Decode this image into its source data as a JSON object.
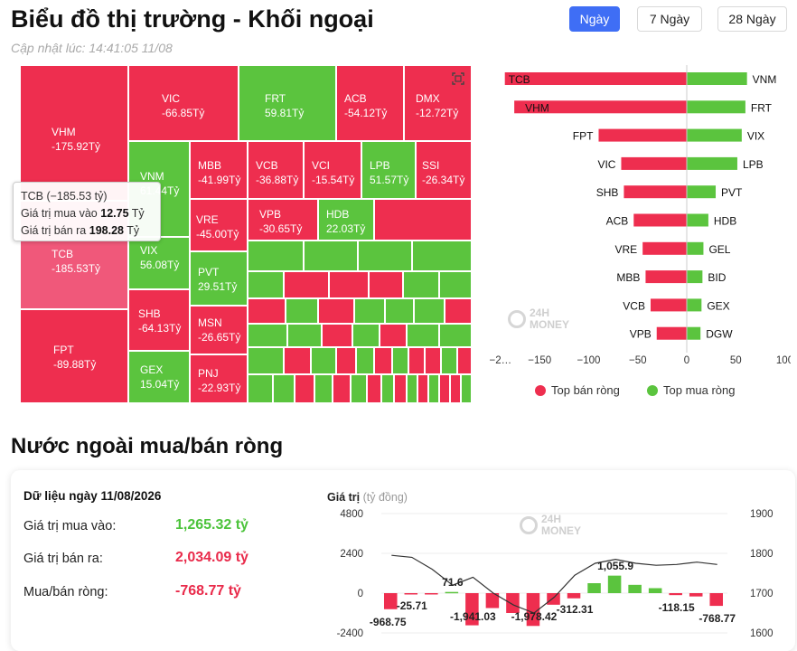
{
  "header": {
    "title": "Biểu đồ thị trường - Khối ngoại",
    "updated": "Cập nhật lúc: 14:41:05 11/08",
    "tabs": [
      {
        "label": "Ngày",
        "active": true
      },
      {
        "label": "7 Ngày",
        "active": false
      },
      {
        "label": "28 Ngày",
        "active": false
      }
    ]
  },
  "treemap": {
    "tiles": [
      {
        "code": "VHM",
        "value": "-175.92Tỷ",
        "color": "red"
      },
      {
        "code": "TCB",
        "value": "-185.53Tỷ",
        "color": "red"
      },
      {
        "code": "FPT",
        "value": "-89.88Tỷ",
        "color": "red"
      },
      {
        "code": "VIC",
        "value": "-66.85Tỷ",
        "color": "red"
      },
      {
        "code": "FRT",
        "value": "59.81Tỷ",
        "color": "green"
      },
      {
        "code": "ACB",
        "value": "-54.12Tỷ",
        "color": "red"
      },
      {
        "code": "DMX",
        "value": "-12.72Tỷ",
        "color": "red"
      },
      {
        "code": "VNM",
        "value": "61.44Tỷ",
        "color": "green"
      },
      {
        "code": "VIX",
        "value": "56.08Tỷ",
        "color": "green"
      },
      {
        "code": "SHB",
        "value": "-64.13Tỷ",
        "color": "red"
      },
      {
        "code": "GEX",
        "value": "15.04Tỷ",
        "color": "green"
      },
      {
        "code": "MBB",
        "value": "-41.99Tỷ",
        "color": "red"
      },
      {
        "code": "VRE",
        "value": "-45.00Tỷ",
        "color": "red"
      },
      {
        "code": "PVT",
        "value": "29.51Tỷ",
        "color": "green"
      },
      {
        "code": "MSN",
        "value": "-26.65Tỷ",
        "color": "red"
      },
      {
        "code": "PNJ",
        "value": "-22.93Tỷ",
        "color": "red"
      },
      {
        "code": "VCB",
        "value": "-36.88Tỷ",
        "color": "red"
      },
      {
        "code": "VCI",
        "value": "-15.54Tỷ",
        "color": "red"
      },
      {
        "code": "LPB",
        "value": "51.57Tỷ",
        "color": "green"
      },
      {
        "code": "SSI",
        "value": "-26.34Tỷ",
        "color": "red"
      },
      {
        "code": "VPB",
        "value": "-30.65Tỷ",
        "color": "red"
      },
      {
        "code": "HDB",
        "value": "22.03Tỷ",
        "color": "green"
      }
    ],
    "tooltip": {
      "line1": "TCB (−185.53 tỷ)",
      "buy_label": "Giá trị mua vào",
      "buy_value": "12.75",
      "buy_unit": "Tỷ",
      "sell_label": "Giá trị bán ra",
      "sell_value": "198.28",
      "sell_unit": "Tỷ"
    }
  },
  "watermark": {
    "line1": "24H",
    "line2": "MONEY"
  },
  "chart_data": [
    {
      "type": "bar",
      "orientation": "horizontal",
      "sell_categories": [
        "TCB",
        "VHM",
        "FPT",
        "VIC",
        "SHB",
        "ACB",
        "VRE",
        "MBB",
        "VCB",
        "VPB"
      ],
      "sell_values": [
        -185.53,
        -175.92,
        -89.88,
        -66.85,
        -64.13,
        -54.12,
        -45.0,
        -41.99,
        -36.88,
        -30.65
      ],
      "buy_categories": [
        "VNM",
        "FRT",
        "VIX",
        "LPB",
        "PVT",
        "HDB",
        "GEL",
        "BID",
        "GEX",
        "DGW"
      ],
      "buy_values": [
        61.44,
        59.81,
        56.08,
        51.57,
        29.51,
        22.03,
        17,
        16,
        15.04,
        14
      ],
      "xticks": [
        "−2…",
        "−150",
        "−100",
        "−50",
        "0",
        "50",
        "100"
      ],
      "xlim": [
        -185,
        100
      ],
      "legend": [
        "Top bán ròng",
        "Top mua ròng"
      ],
      "colors": {
        "sell": "#ee2e4f",
        "buy": "#5bc43e"
      }
    },
    {
      "type": "bar",
      "ylabel": "Giá trị",
      "yunit": "(tỷ đồng)",
      "yticks_left": [
        "4800",
        "2400",
        "0",
        "-2400"
      ],
      "yticks_right": [
        "1900",
        "1800",
        "1700",
        "1600"
      ],
      "net_values": [
        -968.75,
        -25.71,
        -40,
        71.6,
        -1941.03,
        -900,
        -1200,
        -1978.42,
        -700,
        -312.31,
        600,
        1055.9,
        500,
        300,
        -118.15,
        -200,
        -768.77
      ],
      "data_labels": [
        "-968.75",
        "-25.71",
        "71.6",
        "-1,941.03",
        "-1,978.42",
        "-312.31",
        "1,055.9",
        "-118.15",
        "-768.77"
      ],
      "index_line": [
        1795,
        1790,
        1760,
        1720,
        1740,
        1700,
        1670,
        1650,
        1690,
        1745,
        1775,
        1785,
        1775,
        1770,
        1772,
        1778,
        1772
      ]
    }
  ],
  "summary": {
    "title": "Dữ liệu ngày 11/08/2026",
    "buy_label": "Giá trị mua vào:",
    "buy_value": "1,265.32 tỷ",
    "sell_label": "Giá trị bán ra:",
    "sell_value": "2,034.09 tỷ",
    "net_label": "Mua/bán ròng:",
    "net_value": "-768.77 tỷ"
  },
  "section2_title": "Nước ngoài mua/bán ròng"
}
